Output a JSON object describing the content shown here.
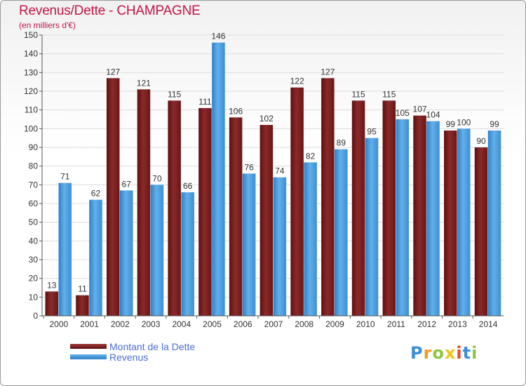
{
  "header": {
    "title": "Revenus/Dette - CHAMPAGNE",
    "subtitle": "(en milliers d'€)"
  },
  "legend": {
    "debt_label": "Montant de la Dette",
    "revenue_label": "Revenus"
  },
  "logo": {
    "text": "Proxiti"
  },
  "colors": {
    "debt": "#7a1e1e",
    "debt_light": "#a33a3a",
    "revenue": "#3b8fd4",
    "revenue_light": "#62b0ea",
    "title": "#c0174a"
  },
  "chart_data": {
    "type": "bar",
    "title": "Revenus/Dette - CHAMPAGNE",
    "ylabel": "(en milliers d'€)",
    "xlabel": "",
    "ylim": [
      0,
      150
    ],
    "yticks": [
      0,
      10,
      20,
      30,
      40,
      50,
      60,
      70,
      80,
      90,
      100,
      110,
      120,
      130,
      140,
      150
    ],
    "grid": true,
    "legend_position": "bottom-left",
    "categories": [
      "2000",
      "2001",
      "2002",
      "2003",
      "2004",
      "2005",
      "2006",
      "2007",
      "2008",
      "2009",
      "2010",
      "2011",
      "2012",
      "2013",
      "2014"
    ],
    "series": [
      {
        "name": "Montant de la Dette",
        "values": [
          13,
          11,
          127,
          121,
          115,
          111,
          106,
          102,
          122,
          127,
          115,
          115,
          107,
          99,
          90
        ]
      },
      {
        "name": "Revenus",
        "values": [
          71,
          62,
          67,
          70,
          66,
          146,
          76,
          74,
          82,
          89,
          95,
          105,
          104,
          100,
          99
        ]
      }
    ]
  }
}
